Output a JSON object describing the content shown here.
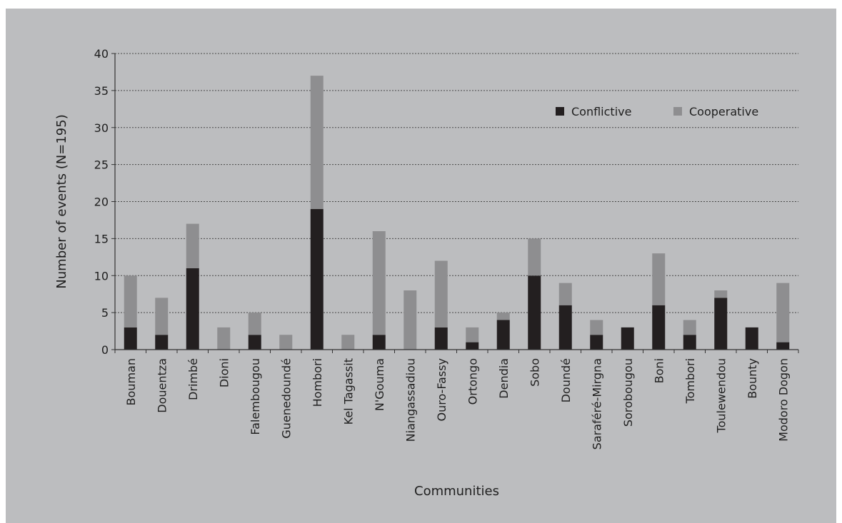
{
  "chart_data": {
    "type": "bar",
    "stacked": true,
    "xlabel": "Communities",
    "ylabel": "Number of events (N=195)",
    "ylim": [
      0,
      40
    ],
    "yticks": [
      0,
      5,
      10,
      15,
      20,
      25,
      30,
      35,
      40
    ],
    "grid": true,
    "legend_position": "top-right",
    "categories": [
      "Bouman",
      "Douentza",
      "Drimbé",
      "Dioni",
      "Falembougou",
      "Guenedoundé",
      "Hombori",
      "Kel Tagassit",
      "N'Gouma",
      "Niangassadiou",
      "Ouro-Fassy",
      "Ortongo",
      "Dendia",
      "Sobo",
      "Doundé",
      "Saraféré-Mirgna",
      "Sorobougou",
      "Boni",
      "Tombori",
      "Toulewendou",
      "Bounty",
      "Modoro Dogon"
    ],
    "series": [
      {
        "name": "Conflictive",
        "color": "#231f20",
        "values": [
          3,
          2,
          11,
          0,
          2,
          0,
          19,
          0,
          2,
          0,
          3,
          1,
          4,
          10,
          6,
          2,
          3,
          6,
          2,
          7,
          3,
          1
        ]
      },
      {
        "name": "Cooperative",
        "color": "#8e8e90",
        "values": [
          7,
          5,
          6,
          3,
          3,
          2,
          18,
          2,
          14,
          8,
          9,
          2,
          1,
          5,
          3,
          2,
          0,
          7,
          2,
          1,
          0,
          8
        ]
      }
    ]
  }
}
